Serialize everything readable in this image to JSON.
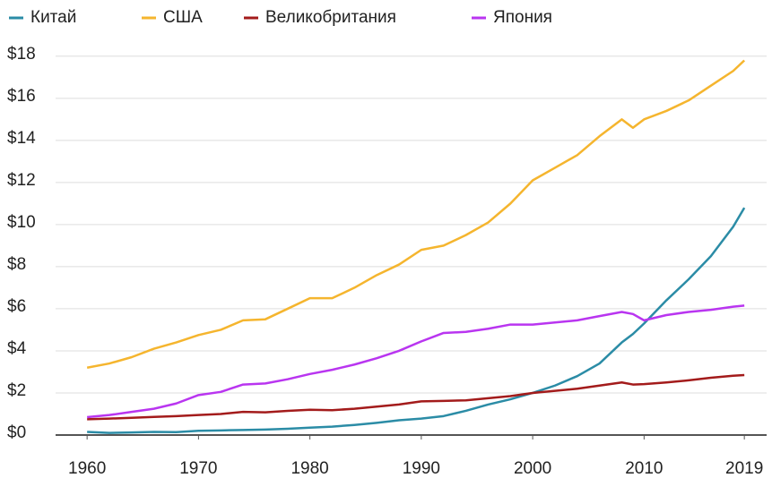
{
  "chart_data": {
    "type": "line",
    "x": [
      1960,
      1962,
      1964,
      1966,
      1968,
      1970,
      1972,
      1974,
      1976,
      1978,
      1980,
      1982,
      1984,
      1986,
      1988,
      1990,
      1992,
      1994,
      1996,
      1998,
      2000,
      2002,
      2004,
      2006,
      2008,
      2009,
      2010,
      2012,
      2014,
      2016,
      2018,
      2019
    ],
    "series": [
      {
        "name": "Китай",
        "color": "#2b8ca6",
        "values": [
          0.15,
          0.1,
          0.12,
          0.15,
          0.14,
          0.2,
          0.22,
          0.24,
          0.26,
          0.3,
          0.35,
          0.4,
          0.48,
          0.58,
          0.7,
          0.78,
          0.9,
          1.15,
          1.45,
          1.7,
          2.0,
          2.35,
          2.8,
          3.4,
          4.4,
          4.8,
          5.3,
          6.4,
          7.4,
          8.5,
          9.9,
          10.8
        ]
      },
      {
        "name": "США",
        "color": "#f5b52e",
        "values": [
          3.2,
          3.4,
          3.7,
          4.1,
          4.4,
          4.75,
          5.0,
          5.45,
          5.5,
          6.0,
          6.5,
          6.5,
          7.0,
          7.6,
          8.1,
          8.8,
          9.0,
          9.5,
          10.1,
          11.0,
          12.1,
          12.7,
          13.3,
          14.2,
          15.0,
          14.6,
          15.0,
          15.4,
          15.9,
          16.6,
          17.3,
          17.8
        ]
      },
      {
        "name": "Великобритания",
        "color": "#a31b1b",
        "values": [
          0.75,
          0.78,
          0.82,
          0.86,
          0.9,
          0.95,
          1.0,
          1.1,
          1.08,
          1.15,
          1.2,
          1.18,
          1.25,
          1.35,
          1.45,
          1.6,
          1.62,
          1.65,
          1.75,
          1.85,
          2.0,
          2.1,
          2.2,
          2.35,
          2.5,
          2.4,
          2.42,
          2.5,
          2.6,
          2.72,
          2.82,
          2.85
        ]
      },
      {
        "name": "Япония",
        "color": "#b935f0",
        "values": [
          0.85,
          0.95,
          1.1,
          1.25,
          1.5,
          1.9,
          2.05,
          2.4,
          2.45,
          2.65,
          2.9,
          3.1,
          3.35,
          3.65,
          4.0,
          4.45,
          4.85,
          4.9,
          5.05,
          5.25,
          5.25,
          5.35,
          5.45,
          5.65,
          5.85,
          5.75,
          5.45,
          5.7,
          5.85,
          5.95,
          6.1,
          6.15
        ]
      }
    ],
    "xlim": [
      1955.4,
      2021
    ],
    "xticks": [
      1960,
      1970,
      1980,
      1990,
      2000,
      2010,
      2019
    ],
    "ylim": [
      0,
      18.8
    ],
    "yticks": [
      {
        "value": 0,
        "label": "$0"
      },
      {
        "value": 2,
        "label": "$2"
      },
      {
        "value": 4,
        "label": "$4"
      },
      {
        "value": 6,
        "label": "$6"
      },
      {
        "value": 8,
        "label": "$8"
      },
      {
        "value": 10,
        "label": "$10"
      },
      {
        "value": 12,
        "label": "$12"
      },
      {
        "value": 14,
        "label": "$14"
      },
      {
        "value": 16,
        "label": "$16"
      },
      {
        "value": 18,
        "label": "$18"
      }
    ],
    "grid": true
  }
}
